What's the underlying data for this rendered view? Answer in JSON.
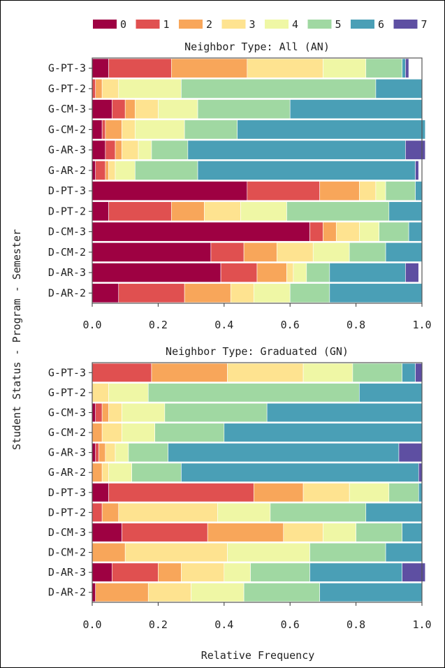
{
  "chart_data": [
    {
      "type": "bar",
      "orientation": "horizontal",
      "stacked": true,
      "title": "Neighbor Type: All (AN)",
      "categories": [
        "G-PT-3",
        "G-PT-2",
        "G-CM-3",
        "G-CM-2",
        "G-AR-3",
        "G-AR-2",
        "D-PT-3",
        "D-PT-2",
        "D-CM-3",
        "D-CM-2",
        "D-AR-3",
        "D-AR-2"
      ],
      "series": [
        {
          "name": "0",
          "values": [
            0.05,
            0.0,
            0.06,
            0.03,
            0.04,
            0.01,
            0.47,
            0.05,
            0.66,
            0.36,
            0.39,
            0.08
          ]
        },
        {
          "name": "1",
          "values": [
            0.19,
            0.01,
            0.04,
            0.01,
            0.03,
            0.03,
            0.22,
            0.19,
            0.04,
            0.1,
            0.11,
            0.2
          ]
        },
        {
          "name": "2",
          "values": [
            0.23,
            0.02,
            0.03,
            0.05,
            0.02,
            0.01,
            0.12,
            0.1,
            0.04,
            0.1,
            0.09,
            0.14
          ]
        },
        {
          "name": "3",
          "values": [
            0.23,
            0.05,
            0.07,
            0.04,
            0.05,
            0.02,
            0.05,
            0.11,
            0.07,
            0.11,
            0.02,
            0.07
          ]
        },
        {
          "name": "4",
          "values": [
            0.13,
            0.19,
            0.12,
            0.15,
            0.04,
            0.06,
            0.03,
            0.14,
            0.06,
            0.11,
            0.04,
            0.11
          ]
        },
        {
          "name": "5",
          "values": [
            0.11,
            0.59,
            0.28,
            0.16,
            0.11,
            0.19,
            0.09,
            0.31,
            0.09,
            0.11,
            0.07,
            0.12
          ]
        },
        {
          "name": "6",
          "values": [
            0.01,
            0.14,
            0.4,
            0.57,
            0.66,
            0.66,
            0.02,
            0.1,
            0.04,
            0.11,
            0.23,
            0.28
          ]
        },
        {
          "name": "7",
          "values": [
            0.01,
            0.0,
            0.0,
            0.0,
            0.06,
            0.01,
            0.0,
            0.0,
            0.0,
            0.0,
            0.04,
            0.0
          ]
        }
      ],
      "xlim": [
        0,
        1
      ],
      "xticks": [
        "0.0",
        "0.2",
        "0.4",
        "0.6",
        "0.8",
        "1.0"
      ]
    },
    {
      "type": "bar",
      "orientation": "horizontal",
      "stacked": true,
      "title": "Neighbor Type: Graduated (GN)",
      "categories": [
        "G-PT-3",
        "G-PT-2",
        "G-CM-3",
        "G-CM-2",
        "G-AR-3",
        "G-AR-2",
        "D-PT-3",
        "D-PT-2",
        "D-CM-3",
        "D-CM-2",
        "D-AR-3",
        "D-AR-2"
      ],
      "series": [
        {
          "name": "0",
          "values": [
            0.0,
            0.0,
            0.01,
            0.0,
            0.01,
            0.0,
            0.05,
            0.0,
            0.09,
            0.0,
            0.06,
            0.01
          ]
        },
        {
          "name": "1",
          "values": [
            0.18,
            0.0,
            0.02,
            0.0,
            0.01,
            0.0,
            0.44,
            0.03,
            0.26,
            0.0,
            0.14,
            0.0
          ]
        },
        {
          "name": "2",
          "values": [
            0.23,
            0.0,
            0.02,
            0.03,
            0.02,
            0.03,
            0.15,
            0.05,
            0.23,
            0.1,
            0.07,
            0.16
          ]
        },
        {
          "name": "3",
          "values": [
            0.23,
            0.05,
            0.04,
            0.06,
            0.03,
            0.02,
            0.14,
            0.3,
            0.12,
            0.31,
            0.13,
            0.13
          ]
        },
        {
          "name": "4",
          "values": [
            0.15,
            0.12,
            0.13,
            0.1,
            0.04,
            0.07,
            0.12,
            0.16,
            0.1,
            0.25,
            0.08,
            0.16
          ]
        },
        {
          "name": "5",
          "values": [
            0.15,
            0.64,
            0.31,
            0.21,
            0.12,
            0.15,
            0.09,
            0.29,
            0.14,
            0.23,
            0.18,
            0.23
          ]
        },
        {
          "name": "6",
          "values": [
            0.04,
            0.19,
            0.47,
            0.6,
            0.7,
            0.72,
            0.01,
            0.17,
            0.06,
            0.11,
            0.28,
            0.31
          ]
        },
        {
          "name": "7",
          "values": [
            0.02,
            0.0,
            0.0,
            0.0,
            0.07,
            0.01,
            0.0,
            0.0,
            0.0,
            0.0,
            0.07,
            0.0
          ]
        }
      ],
      "xlim": [
        0,
        1
      ],
      "xticks": [
        "0.0",
        "0.2",
        "0.4",
        "0.6",
        "0.8",
        "1.0"
      ],
      "xlabel": "Relative Frequency"
    }
  ],
  "shared_ylabel": "Student Status - Program - Semester",
  "legend_placement": "top-center",
  "colors": [
    "#9e0142",
    "#e05050",
    "#f8a65a",
    "#fee390",
    "#eff7a5",
    "#a0d8a2",
    "#4a9fb6",
    "#5e4fa2"
  ]
}
